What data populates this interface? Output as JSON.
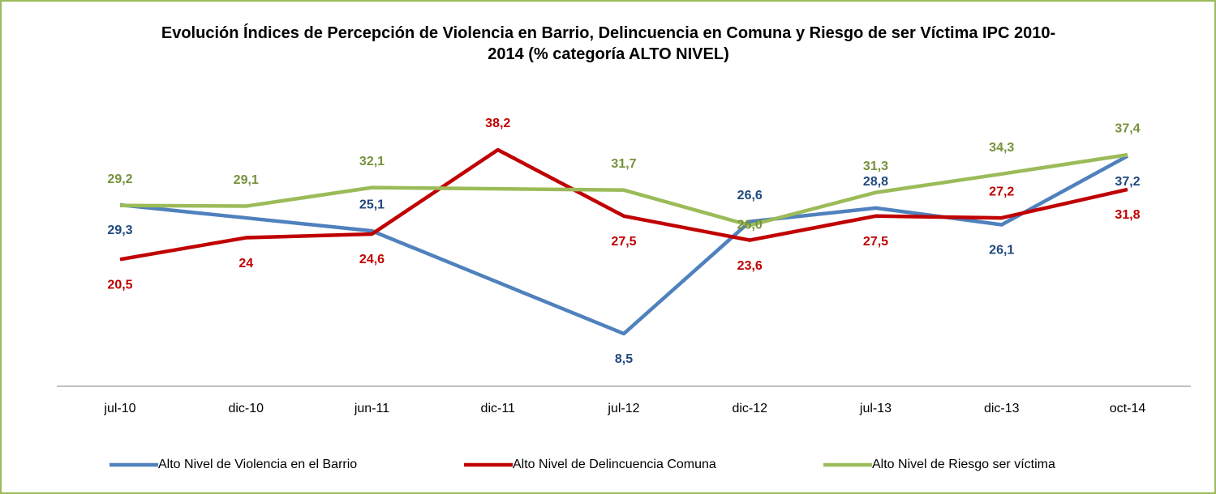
{
  "chart_data": {
    "type": "line",
    "title": "Evolución Índices de Percepción de Violencia en Barrio, Delincuencia en Comuna y Riesgo de ser Víctima IPC 2010-2014 (% categoría ALTO NIVEL)",
    "categories": [
      "jul-10",
      "dic-10",
      "jun-11",
      "dic-11",
      "jul-12",
      "dic-12",
      "jul-13",
      "dic-13",
      "oct-14"
    ],
    "ylim": [
      0,
      45
    ],
    "legend": "bottom",
    "series": [
      {
        "name": "Alto Nivel de Violencia en el Barrio",
        "color": "#4f81bd",
        "label_color": "#1f497d",
        "values": [
          29.3,
          27.2,
          25.1,
          16.8,
          8.5,
          26.6,
          28.8,
          26.1,
          37.2
        ],
        "value_labels": [
          "29,3",
          null,
          "25,1",
          null,
          "8,5",
          "26,6",
          "28,8",
          "26,1",
          "37,2"
        ]
      },
      {
        "name": "Alto Nivel de Delincuencia Comuna",
        "color": "#c00000",
        "label_color": "#c00000",
        "values": [
          20.5,
          24,
          24.6,
          38.2,
          27.5,
          23.6,
          27.5,
          27.2,
          31.8
        ],
        "value_labels": [
          "20,5",
          "24",
          "24,6",
          "38,2",
          "27,5",
          "23,6",
          "27,5",
          "27,2",
          "31,8"
        ]
      },
      {
        "name": "Alto Nivel de Riesgo ser víctima",
        "color": "#9bbb59",
        "label_color": "#76923c",
        "values": [
          29.2,
          29.1,
          32.1,
          31.9,
          31.7,
          26.0,
          31.3,
          34.3,
          37.4
        ],
        "value_labels": [
          "29,2",
          "29,1",
          "32,1",
          null,
          "31,7",
          "26,0",
          "31,3",
          "34,3",
          "37,4"
        ]
      }
    ]
  }
}
